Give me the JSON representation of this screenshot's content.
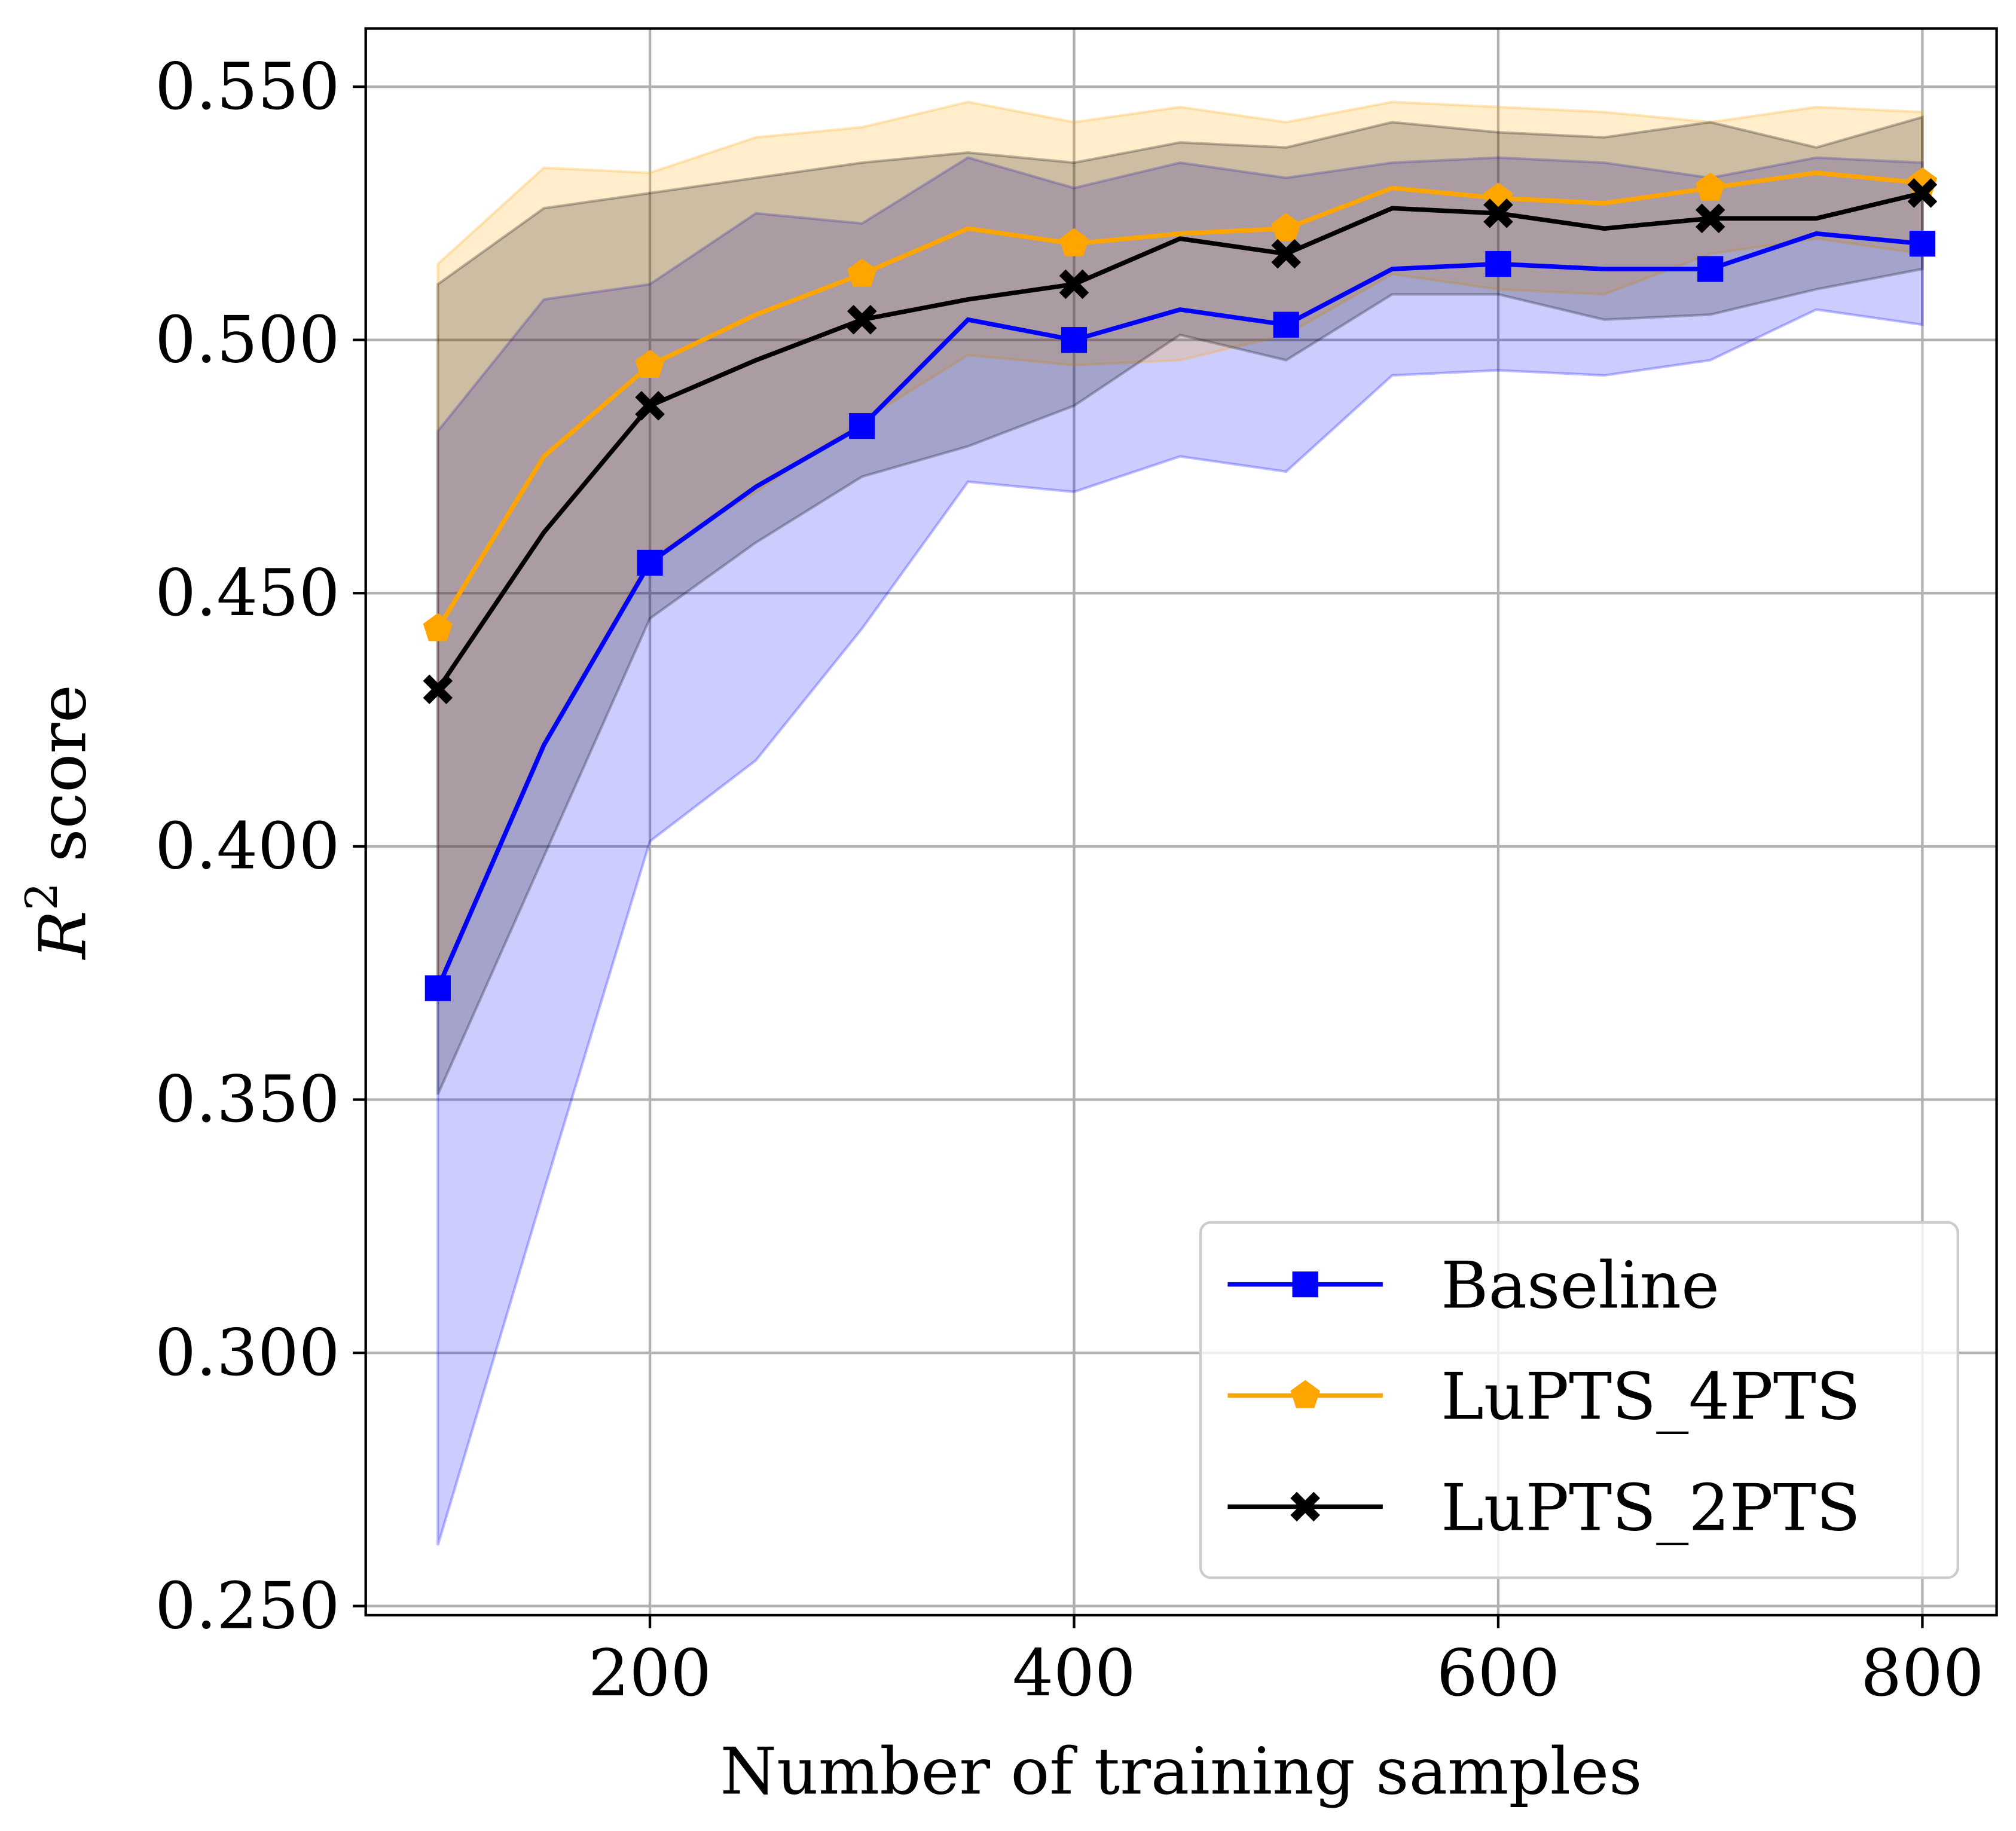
{
  "chart_data": {
    "type": "line",
    "title": "",
    "xlabel": "Number of training samples",
    "ylabel": "R² score",
    "ylabel_base": "R",
    "ylabel_sup": "2",
    "ylabel_rest": " score",
    "xlim": [
      66,
      835
    ],
    "ylim": [
      0.2482,
      0.5615
    ],
    "xticks": [
      200,
      400,
      600,
      800
    ],
    "xtick_labels": [
      "200",
      "400",
      "600",
      "800"
    ],
    "yticks": [
      0.25,
      0.3,
      0.35,
      0.4,
      0.45,
      0.5,
      0.55
    ],
    "ytick_labels": [
      "0.250",
      "0.300",
      "0.350",
      "0.400",
      "0.450",
      "0.500",
      "0.550"
    ],
    "grid": true,
    "legend_placement": "lower-right",
    "x": [
      100,
      150,
      200,
      250,
      300,
      350,
      400,
      450,
      500,
      550,
      600,
      650,
      700,
      750,
      800
    ],
    "series": [
      {
        "name": "Baseline",
        "color": "#0000ff",
        "marker": "square",
        "values": [
          0.372,
          0.42,
          0.456,
          0.471,
          0.483,
          0.504,
          0.5,
          0.506,
          0.503,
          0.514,
          0.515,
          0.514,
          0.514,
          0.521,
          0.519
        ],
        "std": [
          0.11,
          0.088,
          0.055,
          0.054,
          0.04,
          0.032,
          0.03,
          0.029,
          0.029,
          0.021,
          0.021,
          0.021,
          0.018,
          0.015,
          0.016
        ]
      },
      {
        "name": "LuPTS_4PTS",
        "color": "#ffa500",
        "marker": "pentagon",
        "values": [
          0.443,
          0.477,
          0.495,
          0.505,
          0.513,
          0.522,
          0.519,
          0.521,
          0.522,
          0.53,
          0.528,
          0.527,
          0.53,
          0.533,
          0.531
        ],
        "std": [
          0.072,
          0.057,
          0.038,
          0.035,
          0.029,
          0.025,
          0.024,
          0.025,
          0.021,
          0.017,
          0.018,
          0.018,
          0.013,
          0.013,
          0.014
        ]
      },
      {
        "name": "LuPTS_2PTS",
        "color": "#000000",
        "marker": "x",
        "values": [
          0.431,
          0.462,
          0.487,
          0.496,
          0.504,
          0.508,
          0.511,
          0.52,
          0.517,
          0.526,
          0.525,
          0.522,
          0.524,
          0.524,
          0.529
        ],
        "std": [
          0.08,
          0.064,
          0.042,
          0.036,
          0.031,
          0.029,
          0.024,
          0.019,
          0.021,
          0.017,
          0.016,
          0.018,
          0.019,
          0.014,
          0.015
        ]
      }
    ]
  }
}
